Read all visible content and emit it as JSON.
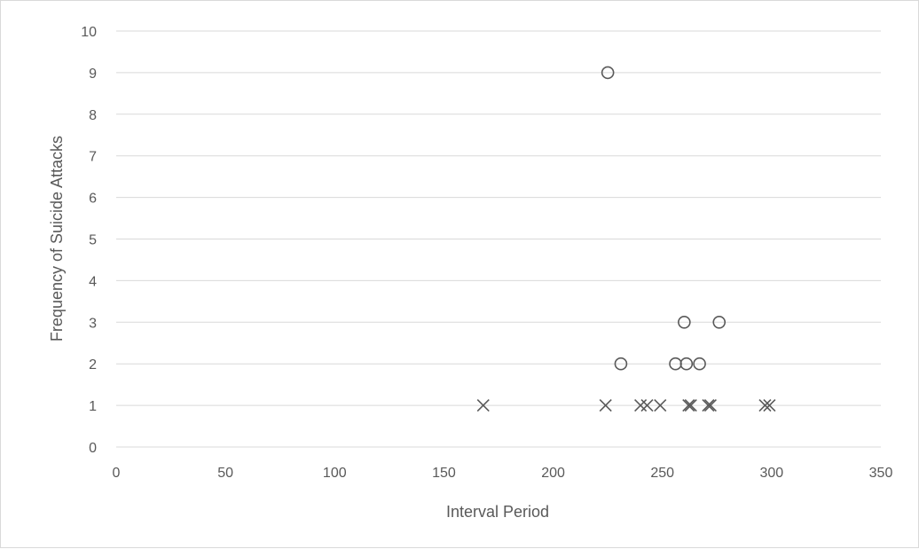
{
  "chart_data": {
    "type": "scatter",
    "title": "",
    "xlabel": "Interval Period",
    "ylabel": "Frequency of Suicide Attacks",
    "xlim": [
      0,
      350
    ],
    "ylim": [
      0,
      10
    ],
    "x_ticks": [
      0,
      50,
      100,
      150,
      200,
      250,
      300,
      350
    ],
    "y_ticks": [
      0,
      1,
      2,
      3,
      4,
      5,
      6,
      7,
      8,
      9,
      10
    ],
    "grid": "horizontal",
    "legend": "none",
    "colors": {
      "marker": "#595959",
      "grid": "#d9d9d9",
      "text": "#595959"
    },
    "series": [
      {
        "marker": "circle",
        "points": [
          {
            "x": 225,
            "y": 9
          },
          {
            "x": 231,
            "y": 2
          },
          {
            "x": 260,
            "y": 3
          },
          {
            "x": 276,
            "y": 3
          },
          {
            "x": 256,
            "y": 2
          },
          {
            "x": 261,
            "y": 2
          },
          {
            "x": 267,
            "y": 2
          }
        ]
      },
      {
        "marker": "x",
        "points": [
          {
            "x": 168,
            "y": 1
          },
          {
            "x": 224,
            "y": 1
          },
          {
            "x": 240,
            "y": 1
          },
          {
            "x": 243,
            "y": 1
          },
          {
            "x": 249,
            "y": 1
          },
          {
            "x": 262,
            "y": 1
          },
          {
            "x": 263,
            "y": 1
          },
          {
            "x": 271,
            "y": 1
          },
          {
            "x": 272,
            "y": 1
          },
          {
            "x": 297,
            "y": 1
          },
          {
            "x": 299,
            "y": 1
          }
        ]
      }
    ]
  }
}
